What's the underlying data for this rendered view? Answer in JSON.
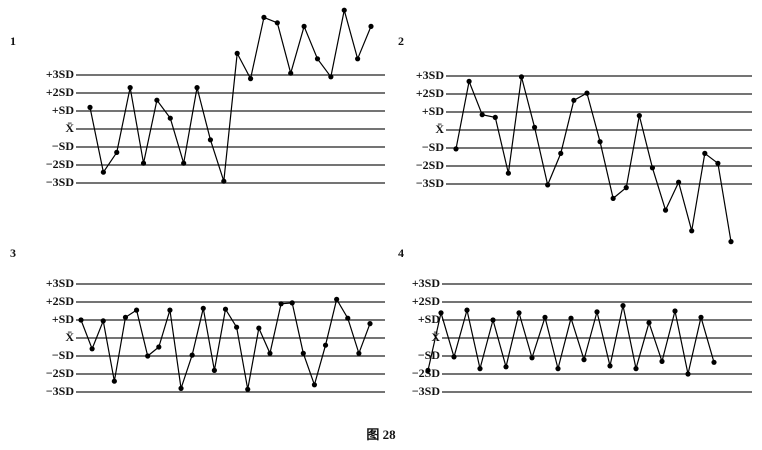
{
  "chart_data": [
    {
      "type": "line",
      "title": "1",
      "color": "#000000",
      "values": [
        1.2,
        -2.4,
        -1.3,
        2.3,
        -1.9,
        1.6,
        0.6,
        -1.9,
        2.3,
        -0.6,
        -2.9,
        4.2,
        2.8,
        6.2,
        5.9,
        3.1,
        5.7,
        3.9,
        2.9,
        6.6,
        3.9,
        5.7
      ],
      "ylim": [
        -3.5,
        6.8
      ],
      "yticks": [
        {
          "value": 3,
          "label": "+3SD"
        },
        {
          "value": 2,
          "label": "+2SD"
        },
        {
          "value": 1,
          "label": "+SD"
        },
        {
          "value": 0,
          "label": "X̄"
        },
        {
          "value": -1,
          "label": "−SD"
        },
        {
          "value": -2,
          "label": "−2SD"
        },
        {
          "value": -3,
          "label": "−3SD"
        }
      ],
      "grid": true
    },
    {
      "type": "line",
      "title": "2",
      "color": "#000000",
      "values": [
        -1.05,
        2.7,
        0.85,
        0.7,
        -2.4,
        2.95,
        0.15,
        -3.05,
        -1.3,
        1.65,
        2.05,
        -0.65,
        -3.8,
        -3.2,
        0.8,
        -2.1,
        -4.45,
        -2.9,
        -5.6,
        -1.3,
        -1.85,
        -6.2
      ],
      "ylim": [
        -6.5,
        3.5
      ],
      "yticks": [
        {
          "value": 3,
          "label": "+3SD"
        },
        {
          "value": 2,
          "label": "+2SD"
        },
        {
          "value": 1,
          "label": "+SD"
        },
        {
          "value": 0,
          "label": "X̄"
        },
        {
          "value": -1,
          "label": "−SD"
        },
        {
          "value": -2,
          "label": "−2SD"
        },
        {
          "value": -3,
          "label": "−3SD"
        }
      ],
      "grid": true
    },
    {
      "type": "line",
      "title": "3",
      "color": "#000000",
      "values": [
        1.0,
        -0.6,
        0.95,
        -2.4,
        1.15,
        1.55,
        -1.0,
        -0.5,
        1.55,
        -2.8,
        -0.95,
        1.65,
        -1.8,
        1.6,
        0.6,
        -2.85,
        0.55,
        -0.85,
        1.9,
        1.95,
        -0.85,
        -2.6,
        -0.4,
        2.15,
        1.1,
        -0.85,
        0.8
      ],
      "ylim": [
        -3.2,
        3.2
      ],
      "yticks": [
        {
          "value": 3,
          "label": "+3SD"
        },
        {
          "value": 2,
          "label": "+2SD"
        },
        {
          "value": 1,
          "label": "+SD"
        },
        {
          "value": 0,
          "label": "X̄"
        },
        {
          "value": -1,
          "label": "−SD"
        },
        {
          "value": -2,
          "label": "−2SD"
        },
        {
          "value": -3,
          "label": "−3SD"
        }
      ],
      "grid": true
    },
    {
      "type": "line",
      "title": "4",
      "color": "#000000",
      "values": [
        -1.8,
        1.4,
        -1.05,
        1.55,
        -1.7,
        1.0,
        -1.6,
        1.4,
        -1.1,
        1.15,
        -1.7,
        1.1,
        -1.2,
        1.45,
        -1.55,
        1.8,
        -1.7,
        0.85,
        -1.3,
        1.5,
        -2.0,
        1.15,
        -1.35
      ],
      "ylim": [
        -3.2,
        3.2
      ],
      "yticks": [
        {
          "value": 3,
          "label": "+3SD"
        },
        {
          "value": 2,
          "label": "+2SD"
        },
        {
          "value": 1,
          "label": "+SD"
        },
        {
          "value": 0,
          "label": "X̄"
        },
        {
          "value": -1,
          "label": "−SD"
        },
        {
          "value": -2,
          "label": "−2SD"
        },
        {
          "value": -3,
          "label": "−3SD"
        }
      ],
      "grid": true
    }
  ],
  "caption": "图 28"
}
